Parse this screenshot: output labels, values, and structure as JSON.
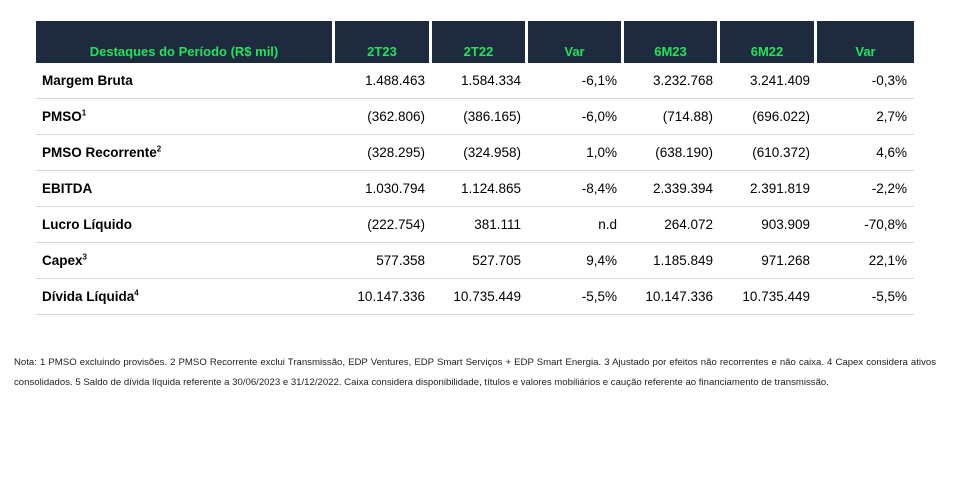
{
  "table": {
    "headers": [
      "Destaques do Período (R$ mil)",
      "2T23",
      "2T22",
      "Var",
      "6M23",
      "6M22",
      "Var"
    ],
    "rows": [
      {
        "label": "Margem Bruta",
        "sup": "",
        "values": [
          "1.488.463",
          "1.584.334",
          "-6,1%",
          "3.232.768",
          "3.241.409",
          "-0,3%"
        ]
      },
      {
        "label": "PMSO",
        "sup": "1",
        "values": [
          "(362.806)",
          "(386.165)",
          "-6,0%",
          "(714.88)",
          "(696.022)",
          "2,7%"
        ]
      },
      {
        "label": "PMSO Recorrente",
        "sup": "2",
        "values": [
          "(328.295)",
          "(324.958)",
          "1,0%",
          "(638.190)",
          "(610.372)",
          "4,6%"
        ]
      },
      {
        "label": "EBITDA",
        "sup": "",
        "values": [
          "1.030.794",
          "1.124.865",
          "-8,4%",
          "2.339.394",
          "2.391.819",
          "-2,2%"
        ]
      },
      {
        "label": "Lucro Líquido",
        "sup": "",
        "values": [
          "(222.754)",
          "381.111",
          "n.d",
          "264.072",
          "903.909",
          "-70,8%"
        ]
      },
      {
        "label": "Capex",
        "sup": "3",
        "values": [
          "577.358",
          "527.705",
          "9,4%",
          "1.185.849",
          "971.268",
          "22,1%"
        ]
      },
      {
        "label": "Dívida Líquida",
        "sup": "4",
        "values": [
          "10.147.336",
          "10.735.449",
          "-5,5%",
          "10.147.336",
          "10.735.449",
          "-5,5%"
        ]
      }
    ]
  },
  "note": "Nota: 1 PMSO excluindo provisões. 2 PMSO Recorrente exclui Transmissão, EDP Ventures, EDP Smart Serviços + EDP Smart Energia. 3 Ajustado por efeitos não recorrentes e não caixa.  4 Capex considera ativos consolidados. 5 Saldo de dívida líquida referente a 30/06/2023 e 31/12/2022. Caixa considera disponibilidade, títulos e valores mobiliários e caução referente ao financiamento de transmissão.",
  "colors": {
    "header_bg": "#1e2a3d",
    "header_text": "#22e35a",
    "row_divider": "#d9d9d9"
  }
}
